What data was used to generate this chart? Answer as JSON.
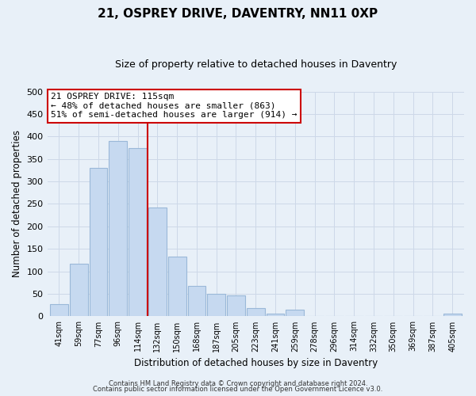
{
  "title": "21, OSPREY DRIVE, DAVENTRY, NN11 0XP",
  "subtitle": "Size of property relative to detached houses in Daventry",
  "xlabel": "Distribution of detached houses by size in Daventry",
  "ylabel": "Number of detached properties",
  "bar_labels": [
    "41sqm",
    "59sqm",
    "77sqm",
    "96sqm",
    "114sqm",
    "132sqm",
    "150sqm",
    "168sqm",
    "187sqm",
    "205sqm",
    "223sqm",
    "241sqm",
    "259sqm",
    "278sqm",
    "296sqm",
    "314sqm",
    "332sqm",
    "350sqm",
    "369sqm",
    "387sqm",
    "405sqm"
  ],
  "bar_heights": [
    28,
    117,
    330,
    390,
    375,
    242,
    133,
    68,
    50,
    46,
    19,
    6,
    14,
    0,
    0,
    0,
    0,
    0,
    0,
    0,
    6
  ],
  "bar_color": "#c6d9f0",
  "bar_edge_color": "#9ab8d8",
  "vline_color": "#cc0000",
  "ylim": [
    0,
    500
  ],
  "yticks": [
    0,
    50,
    100,
    150,
    200,
    250,
    300,
    350,
    400,
    450,
    500
  ],
  "annotation_title": "21 OSPREY DRIVE: 115sqm",
  "annotation_line1": "← 48% of detached houses are smaller (863)",
  "annotation_line2": "51% of semi-detached houses are larger (914) →",
  "annotation_box_color": "#ffffff",
  "annotation_box_edge": "#cc0000",
  "footnote1": "Contains HM Land Registry data © Crown copyright and database right 2024.",
  "footnote2": "Contains public sector information licensed under the Open Government Licence v3.0.",
  "grid_color": "#cdd8e8",
  "background_color": "#e8f0f8"
}
